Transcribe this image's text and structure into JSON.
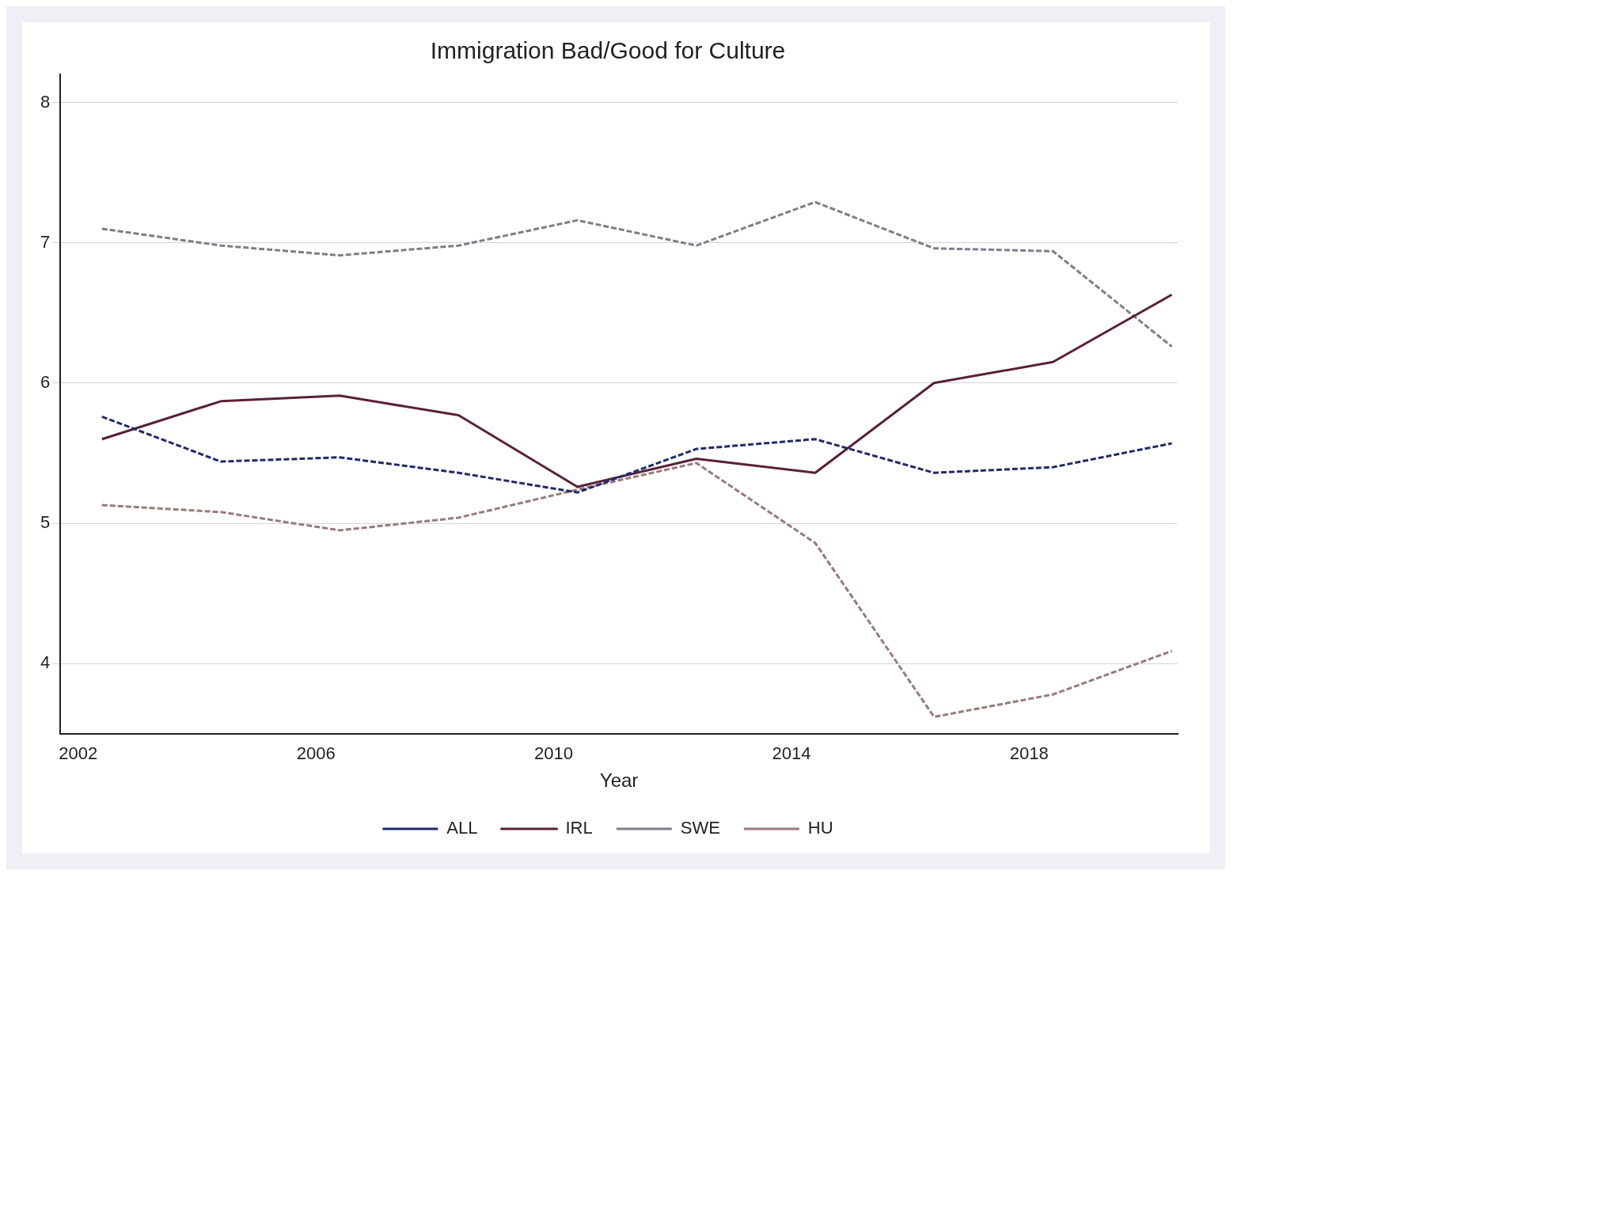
{
  "chart_data": {
    "type": "line",
    "title": "Immigration Bad/Good for Culture",
    "xlabel": "Year",
    "x": [
      2002.4,
      2004.4,
      2006.4,
      2008.4,
      2010.4,
      2012.4,
      2014.4,
      2016.4,
      2018.4,
      2020.4
    ],
    "series": [
      {
        "name": "ALL",
        "color": "#1f2a6b",
        "line_style": "dashed",
        "values": [
          5.76,
          5.44,
          5.47,
          5.36,
          5.22,
          5.53,
          5.6,
          5.36,
          5.4,
          5.57
        ]
      },
      {
        "name": "IRL",
        "color": "#5a1f3a",
        "line_style": "solid",
        "values": [
          5.6,
          5.87,
          5.91,
          5.77,
          5.26,
          5.46,
          5.36,
          6.0,
          6.15,
          6.63
        ]
      },
      {
        "name": "SWE",
        "color": "#7a7f8a",
        "line_style": "dashed",
        "values": [
          7.1,
          6.98,
          6.91,
          6.98,
          7.16,
          6.98,
          7.29,
          6.96,
          6.94,
          6.26
        ]
      },
      {
        "name": "HU",
        "color": "#9a7a78",
        "line_style": "dashed",
        "values": [
          5.13,
          5.08,
          4.95,
          5.04,
          5.24,
          5.43,
          4.86,
          3.62,
          3.78,
          4.09
        ]
      }
    ],
    "xlim": [
      2001.7,
      2020.5
    ],
    "xticks": [
      2002,
      2006,
      2010,
      2014,
      2018
    ],
    "ylim": [
      3.5,
      8.2
    ],
    "yticks": [
      4,
      5,
      6,
      7,
      8
    ],
    "grid": "y",
    "legend": "bottom",
    "marker": "none"
  }
}
